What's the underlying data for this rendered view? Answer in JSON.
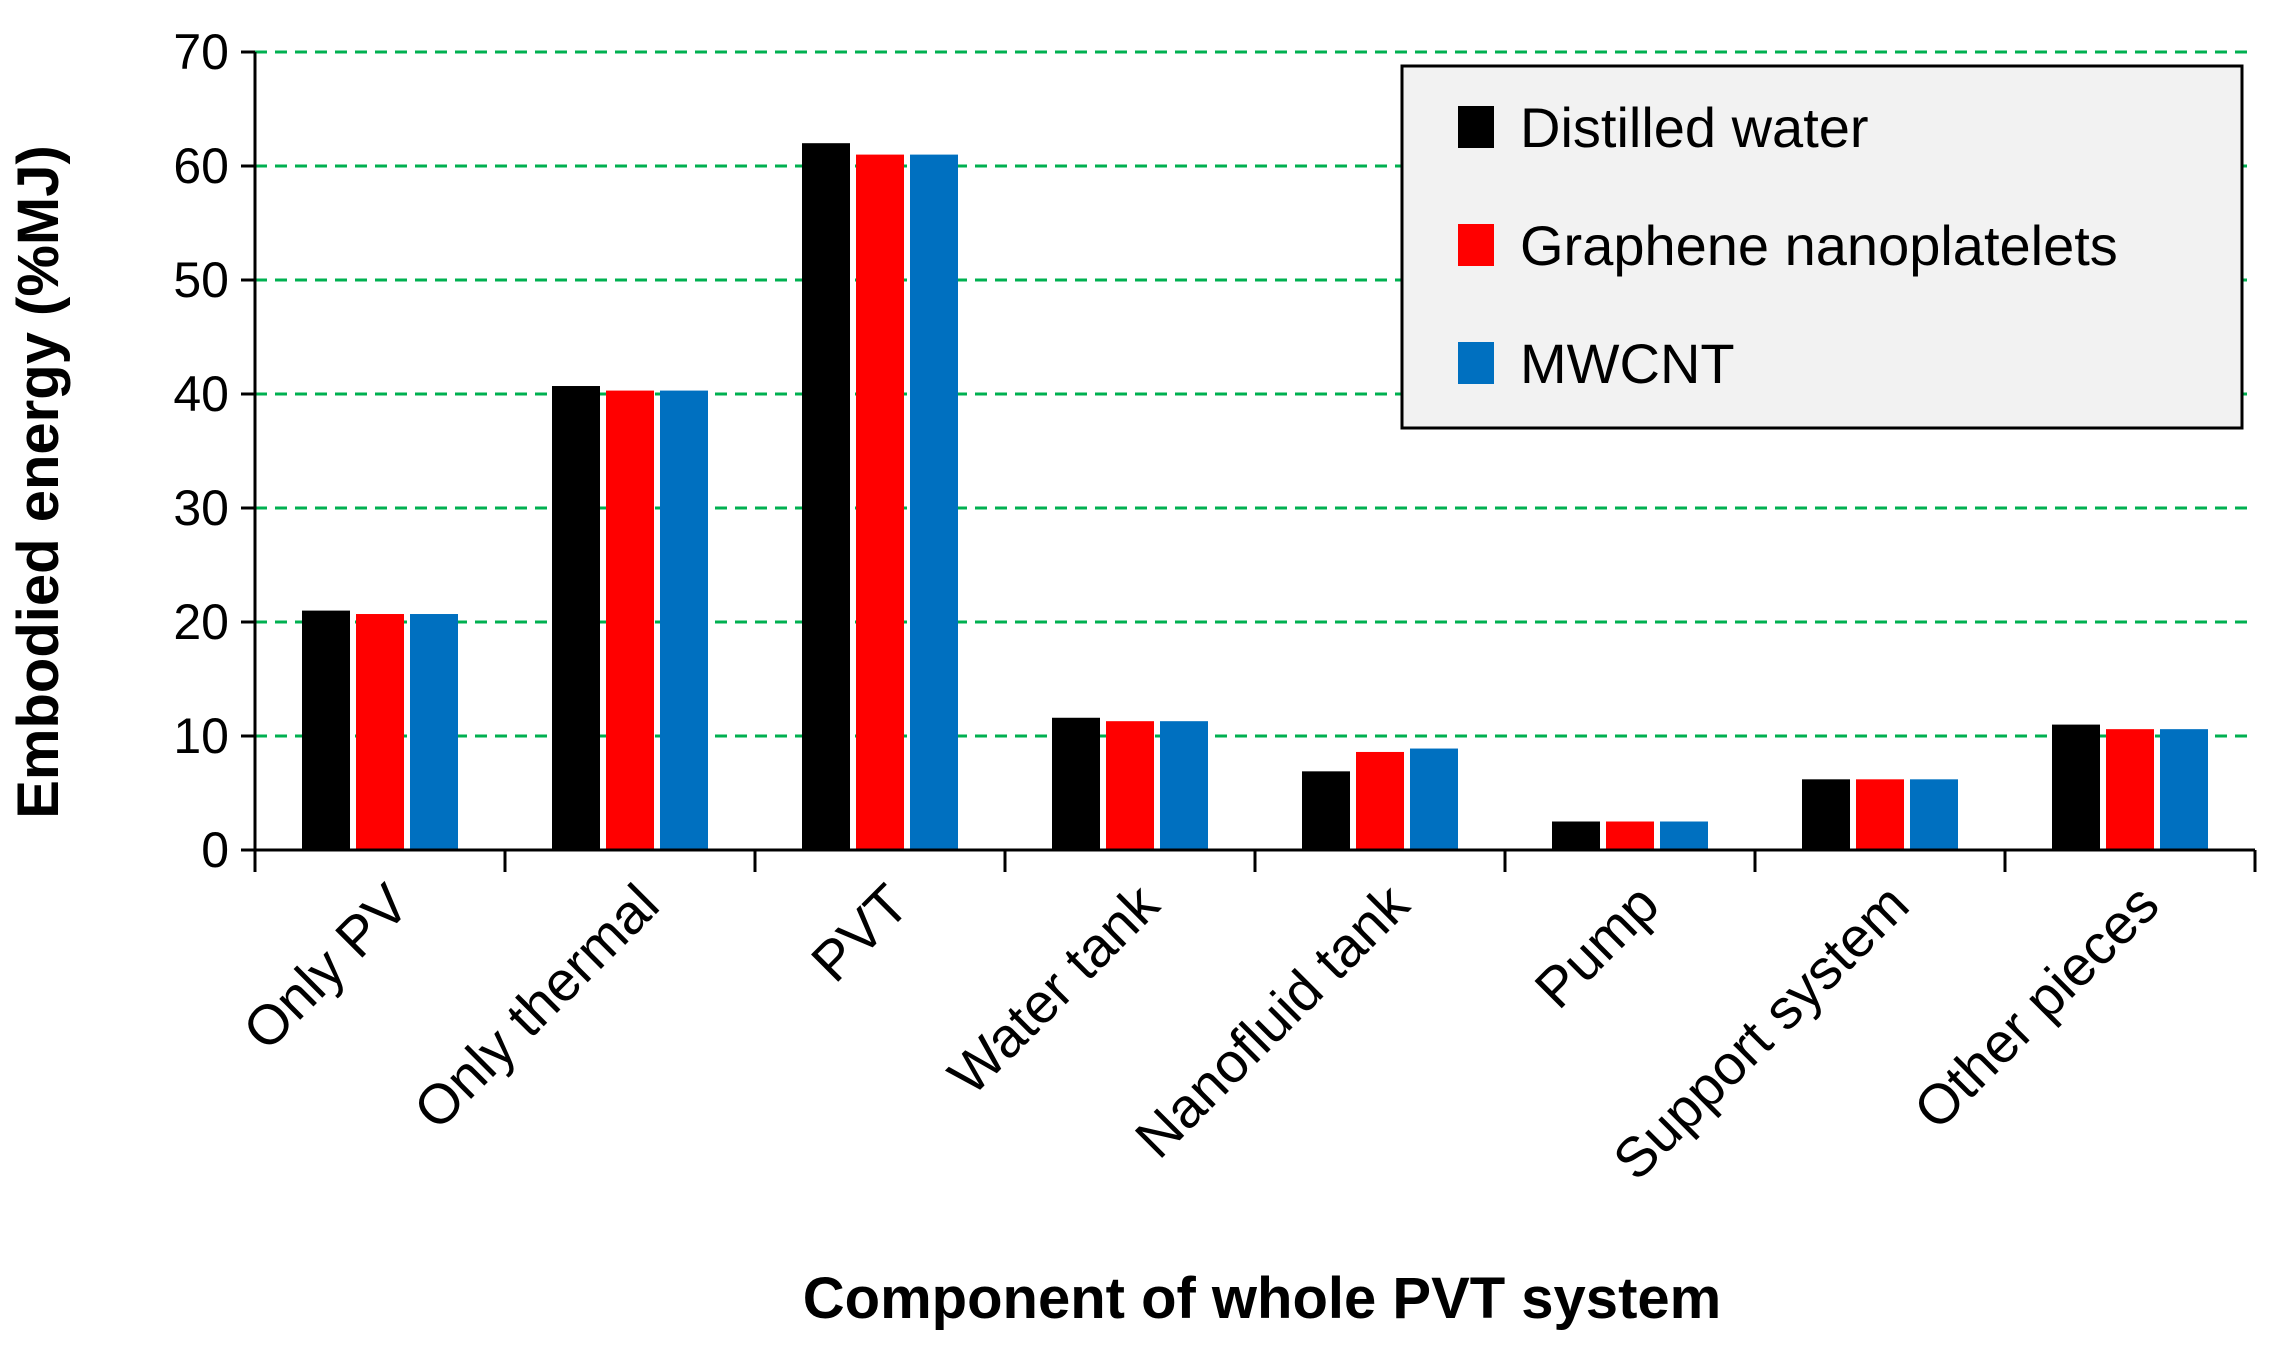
{
  "chart_data": {
    "type": "bar",
    "title": "",
    "xlabel": "Component of whole PVT system",
    "ylabel": "Embodied energy (%MJ)",
    "ylim": [
      0,
      70
    ],
    "yticks": [
      "0",
      "10",
      "20",
      "30",
      "40",
      "50",
      "60",
      "70"
    ],
    "grid": true,
    "legend_position": "top-right",
    "categories": [
      "Only PV",
      "Only thermal",
      "PVT",
      "Water tank",
      "Nanofluid tank",
      "Pump",
      "Support system",
      "Other pieces"
    ],
    "series": [
      {
        "name": "Distilled water",
        "color": "#000000",
        "values": [
          21.0,
          40.7,
          62.0,
          11.6,
          6.9,
          2.5,
          6.2,
          11.0
        ]
      },
      {
        "name": "Graphene nanoplatelets",
        "color": "#ff0000",
        "values": [
          20.7,
          40.3,
          61.0,
          11.3,
          8.6,
          2.5,
          6.2,
          10.6
        ]
      },
      {
        "name": "MWCNT",
        "color": "#0070c0",
        "values": [
          20.7,
          40.3,
          61.0,
          11.3,
          8.9,
          2.5,
          6.2,
          10.6
        ]
      }
    ],
    "colors": {
      "grid": "#00b050",
      "axis": "#000000",
      "legend_bg": "#f2f2f2",
      "legend_border": "#000000"
    }
  }
}
